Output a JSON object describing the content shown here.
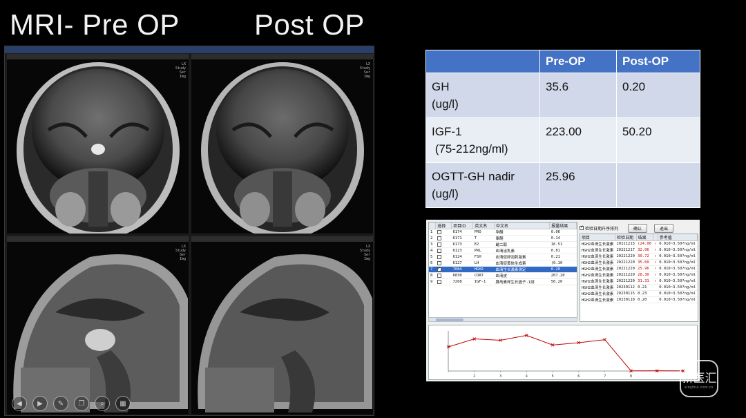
{
  "titles": {
    "pre": "MRI- Pre OP",
    "post": "Post OP"
  },
  "toolbar": {
    "icons": [
      "back-icon",
      "play-icon",
      "pen-icon",
      "copy-icon",
      "zoom-icon",
      "grid-icon"
    ]
  },
  "hormone_table": {
    "headers": [
      "",
      "Pre-OP",
      "Post-OP"
    ],
    "rows": [
      {
        "name": "GH",
        "unit": "(ug/l)",
        "pre": "35.6",
        "post": "0.20"
      },
      {
        "name": "IGF-1",
        "unit": " (75-212ng/ml)",
        "pre": "223.00",
        "post": "50.20"
      },
      {
        "name": "OGTT-GH nadir",
        "unit": "(ug/l)",
        "pre": "25.96",
        "post": ""
      }
    ]
  },
  "lab_list": {
    "headers": [
      "选择",
      "项目ID",
      "英文名",
      "中文名",
      "报量结果"
    ],
    "rows": [
      {
        "no": "1",
        "id": "6174",
        "en": "PRO",
        "cn": "孕酮",
        "val": "0.06",
        "checked": false
      },
      {
        "no": "2",
        "id": "6171",
        "en": "T",
        "cn": "睾酮",
        "val": "0.14",
        "checked": false
      },
      {
        "no": "3",
        "id": "6173",
        "en": "E2",
        "cn": "雌二醇",
        "val": "16.51",
        "checked": false
      },
      {
        "no": "4",
        "id": "6123",
        "en": "PRL",
        "cn": "血清泌乳素",
        "val": "0.81",
        "checked": false
      },
      {
        "no": "5",
        "id": "6124",
        "en": "FSH",
        "cn": "血清促卵泡刺激素",
        "val": "0.21",
        "checked": false
      },
      {
        "no": "6",
        "id": "6127",
        "en": "LH",
        "cn": "血清促黄体生成素",
        "val": "(0.10",
        "checked": false
      },
      {
        "no": "7",
        "id": "7084",
        "en": "HGH2",
        "cn": "血清生长激素测定",
        "val": "0.20",
        "checked": true
      },
      {
        "no": "8",
        "id": "6830",
        "en": "COR7",
        "cn": "血清皮",
        "val": "207.20",
        "checked": false
      },
      {
        "no": "9",
        "id": "7268",
        "en": "IGF-1",
        "cn": "胰岛素样生长因子-1测",
        "val": "50.20",
        "checked": false
      }
    ]
  },
  "controls": {
    "checkbox_label": "检验日期升序排列",
    "confirm": "确认",
    "exit": "退出"
  },
  "result_list": {
    "headers": [
      "项目",
      "检验日期",
      "结果",
      "",
      "参考值"
    ],
    "rows": [
      {
        "item": "HGH2血清生长激素",
        "date": "20221215",
        "val": "(24.06",
        "flag": "↑",
        "ref": "0.010~3.50?ng/ml",
        "hi": true
      },
      {
        "item": "HGH2血清生长激素",
        "date": "20221217",
        "val": "32.06",
        "flag": "↑",
        "ref": "0.010~3.50?ng/ml",
        "hi": true
      },
      {
        "item": "HGH2血清生长激素",
        "date": "20221220",
        "val": "30.72",
        "flag": "↑",
        "ref": "0.010~3.50?ng/ml",
        "hi": true
      },
      {
        "item": "HGH2血清生长激素",
        "date": "20221220",
        "val": "35.60",
        "flag": "↑",
        "ref": "0.010~3.50?ng/ml",
        "hi": true
      },
      {
        "item": "HGH2血清生长激素",
        "date": "20221220",
        "val": "25.96",
        "flag": "↑",
        "ref": "0.010~3.50?ng/ml",
        "hi": true
      },
      {
        "item": "HGH2血清生长激素",
        "date": "20221220",
        "val": "28.30",
        "flag": "↑",
        "ref": "0.010~3.50?ng/ml",
        "hi": true
      },
      {
        "item": "HGH2血清生长激素",
        "date": "20221220",
        "val": "31.31",
        "flag": "↑",
        "ref": "0.010~3.50?ng/ml",
        "hi": true
      },
      {
        "item": "HGH2血清生长激素",
        "date": "20230112",
        "val": "0.21",
        "flag": "",
        "ref": "0.010~3.50?ng/ml",
        "hi": false
      },
      {
        "item": "HGH2血清生长激素",
        "date": "20230115",
        "val": "0.23",
        "flag": "",
        "ref": "0.010~3.50?ng/ml",
        "hi": false
      },
      {
        "item": "HGH2血清生长激素",
        "date": "20230118",
        "val": "0.20",
        "flag": "",
        "ref": "0.010~3.50?ng/ml",
        "hi": false
      }
    ]
  },
  "chart_data": {
    "type": "line",
    "x": [
      1,
      2,
      3,
      4,
      5,
      6,
      7,
      8,
      9,
      10
    ],
    "values": [
      24.06,
      32.06,
      30.72,
      35.6,
      25.96,
      28.3,
      31.31,
      0.21,
      0.23,
      0.2
    ],
    "ylim": [
      0,
      40
    ],
    "x_tick_labels": [
      "",
      "2",
      "3",
      "4",
      "5",
      "6",
      "7",
      "8",
      "",
      ""
    ],
    "ylabel": "",
    "color": "#c00000"
  },
  "watermark": {
    "text": "新医汇",
    "sub": "xinyihui.com.cn"
  }
}
